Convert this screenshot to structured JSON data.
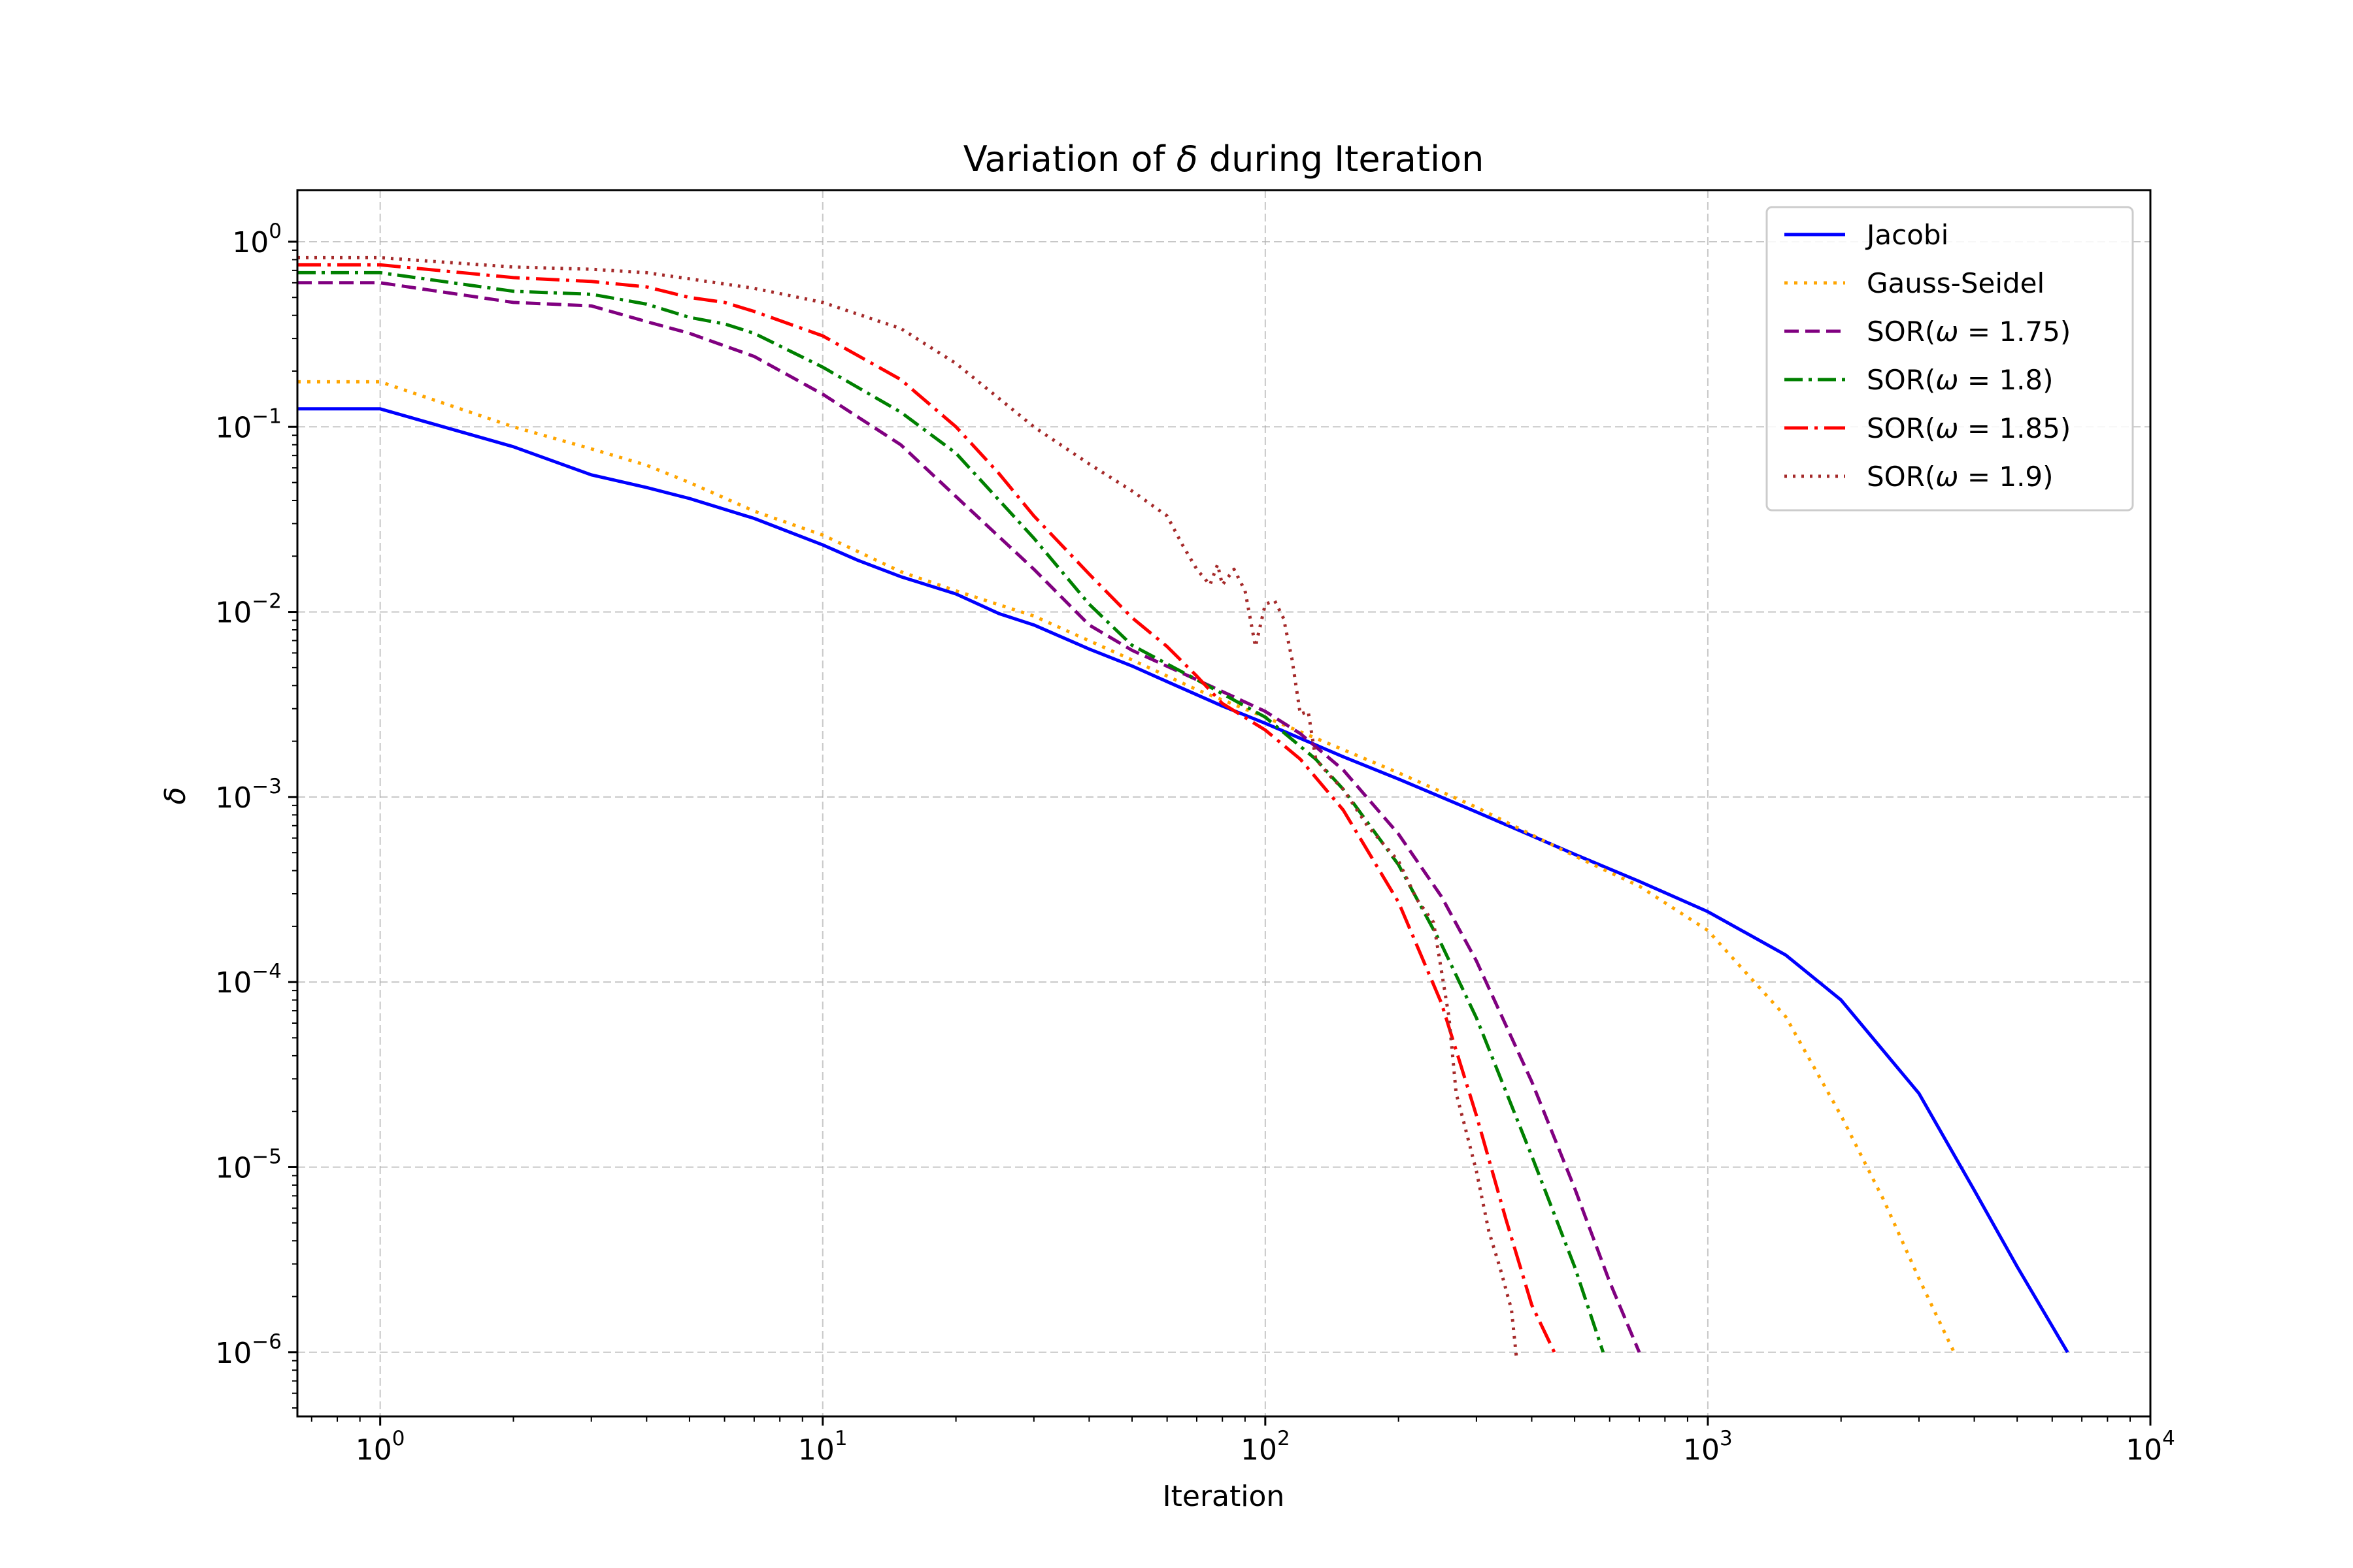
{
  "chart_data": {
    "type": "line",
    "title_text": "Variation of ",
    "title_symbol": "δ",
    "title_suffix": " during Iteration",
    "xlabel": "Iteration",
    "ylabel": "δ",
    "xscale": "log",
    "yscale": "log",
    "xlim": [
      0.65,
      10000
    ],
    "ylim": [
      4.5e-07,
      1.9
    ],
    "grid": true,
    "legend_position": "top-right",
    "xticks": [
      {
        "value": 1,
        "base": "10",
        "exp": "0"
      },
      {
        "value": 10,
        "base": "10",
        "exp": "1"
      },
      {
        "value": 100,
        "base": "10",
        "exp": "2"
      },
      {
        "value": 1000,
        "base": "10",
        "exp": "3"
      },
      {
        "value": 10000,
        "base": "10",
        "exp": "4"
      }
    ],
    "yticks": [
      {
        "value": 1,
        "base": "10",
        "exp": "0"
      },
      {
        "value": 0.1,
        "base": "10",
        "exp": "−1"
      },
      {
        "value": 0.01,
        "base": "10",
        "exp": "−2"
      },
      {
        "value": 0.001,
        "base": "10",
        "exp": "−3"
      },
      {
        "value": 0.0001,
        "base": "10",
        "exp": "−4"
      },
      {
        "value": 1e-05,
        "base": "10",
        "exp": "−5"
      },
      {
        "value": 1e-06,
        "base": "10",
        "exp": "−6"
      }
    ],
    "series": [
      {
        "name": "Jacobi",
        "legend_prefix": "Jacobi",
        "legend_symbol": "",
        "legend_suffix": "",
        "color": "#0000ff",
        "dash": "",
        "x": [
          0.65,
          1,
          2,
          3,
          4,
          5,
          7,
          10,
          12,
          15,
          20,
          25,
          30,
          40,
          50,
          60,
          80,
          100,
          150,
          200,
          300,
          500,
          700,
          1000,
          1500,
          2000,
          3000,
          4000,
          5000,
          6500
        ],
        "y": [
          0.125,
          0.125,
          0.078,
          0.055,
          0.047,
          0.041,
          0.032,
          0.023,
          0.019,
          0.0155,
          0.0125,
          0.0098,
          0.0085,
          0.0063,
          0.0051,
          0.0042,
          0.0031,
          0.0025,
          0.00165,
          0.00125,
          0.00083,
          0.00049,
          0.00035,
          0.00024,
          0.00014,
          8e-05,
          2.5e-05,
          7.5e-06,
          2.9e-06,
          1e-06
        ]
      },
      {
        "name": "Gauss-Seidel",
        "legend_prefix": "Gauss-Seidel",
        "legend_symbol": "",
        "legend_suffix": "",
        "color": "#ffa500",
        "dash": "5,10",
        "x": [
          0.65,
          1,
          2,
          3,
          4,
          5,
          7,
          10,
          15,
          20,
          30,
          50,
          70,
          100,
          150,
          200,
          300,
          500,
          700,
          1000,
          1500,
          2000,
          2500,
          3000,
          3600
        ],
        "y": [
          0.175,
          0.175,
          0.1,
          0.076,
          0.062,
          0.05,
          0.035,
          0.026,
          0.0165,
          0.013,
          0.0095,
          0.0055,
          0.0038,
          0.0027,
          0.0018,
          0.00135,
          0.00088,
          0.00048,
          0.00033,
          0.00019,
          6.5e-05,
          1.9e-05,
          6.6e-06,
          2.5e-06,
          1e-06
        ]
      },
      {
        "name": "SOR(ω = 1.75)",
        "legend_prefix": "SOR(",
        "legend_symbol": "ω",
        "legend_suffix": " = 1.75)",
        "color": "#800080",
        "dash": "22,10",
        "x": [
          0.65,
          1,
          2,
          3,
          4,
          5,
          7,
          10,
          15,
          20,
          30,
          40,
          50,
          70,
          100,
          120,
          150,
          200,
          250,
          300,
          400,
          500,
          600,
          700
        ],
        "y": [
          0.6,
          0.6,
          0.47,
          0.45,
          0.37,
          0.32,
          0.24,
          0.15,
          0.08,
          0.042,
          0.017,
          0.0085,
          0.0062,
          0.0043,
          0.0029,
          0.0022,
          0.0014,
          0.00063,
          0.00029,
          0.00013,
          2.9e-05,
          7.7e-06,
          2.4e-06,
          1e-06
        ]
      },
      {
        "name": "SOR(ω = 1.8)",
        "legend_prefix": "SOR(",
        "legend_symbol": "ω",
        "legend_suffix": " = 1.8)",
        "color": "#008000",
        "dash": "28,9,5,9",
        "x": [
          0.65,
          1,
          2,
          3,
          4,
          5,
          6,
          7,
          10,
          15,
          20,
          30,
          40,
          50,
          70,
          100,
          130,
          150,
          200,
          250,
          300,
          400,
          500,
          580
        ],
        "y": [
          0.68,
          0.68,
          0.54,
          0.52,
          0.46,
          0.39,
          0.36,
          0.32,
          0.21,
          0.12,
          0.072,
          0.025,
          0.011,
          0.0066,
          0.0043,
          0.0027,
          0.0016,
          0.0011,
          0.00043,
          0.00016,
          6.4e-05,
          1.15e-05,
          2.9e-06,
          1e-06
        ]
      },
      {
        "name": "SOR(ω = 1.85)",
        "legend_prefix": "SOR(",
        "legend_symbol": "ω",
        "legend_suffix": " = 1.85)",
        "color": "#ff0000",
        "dash": "36,10,5,10",
        "x": [
          0.65,
          1,
          2,
          3,
          4,
          5,
          6,
          7,
          10,
          15,
          20,
          25,
          30,
          40,
          50,
          60,
          70,
          80,
          100,
          120,
          150,
          200,
          250,
          300,
          350,
          400,
          450
        ],
        "y": [
          0.75,
          0.75,
          0.64,
          0.61,
          0.57,
          0.5,
          0.47,
          0.42,
          0.31,
          0.18,
          0.1,
          0.056,
          0.033,
          0.016,
          0.0093,
          0.0065,
          0.0045,
          0.0032,
          0.0023,
          0.0016,
          0.00085,
          0.00027,
          7.7e-05,
          1.9e-05,
          5.2e-06,
          1.8e-06,
          1e-06
        ]
      },
      {
        "name": "SOR(ω = 1.9)",
        "legend_prefix": "SOR(",
        "legend_symbol": "ω",
        "legend_suffix": " = 1.9)",
        "color": "#a52a2a",
        "dash": "4,9",
        "x": [
          0.65,
          1,
          2,
          3,
          4,
          5,
          7,
          10,
          15,
          20,
          30,
          40,
          50,
          60,
          65,
          70,
          75,
          78,
          80,
          85,
          90,
          95,
          100,
          105,
          110,
          115,
          120,
          125,
          130,
          140,
          150,
          170,
          200,
          220,
          240,
          260,
          270,
          280,
          300,
          320,
          340,
          360,
          370
        ],
        "y": [
          0.82,
          0.82,
          0.73,
          0.71,
          0.68,
          0.63,
          0.56,
          0.47,
          0.34,
          0.22,
          0.1,
          0.063,
          0.045,
          0.033,
          0.023,
          0.017,
          0.014,
          0.018,
          0.014,
          0.017,
          0.013,
          0.0065,
          0.011,
          0.0115,
          0.0092,
          0.0055,
          0.0028,
          0.0029,
          0.0016,
          0.0013,
          0.0011,
          0.0007,
          0.00045,
          0.00028,
          0.00021,
          6.5e-05,
          2.5e-05,
          1.8e-05,
          9.5e-06,
          4.5e-06,
          2.8e-06,
          1.7e-06,
          9e-07
        ]
      }
    ]
  }
}
